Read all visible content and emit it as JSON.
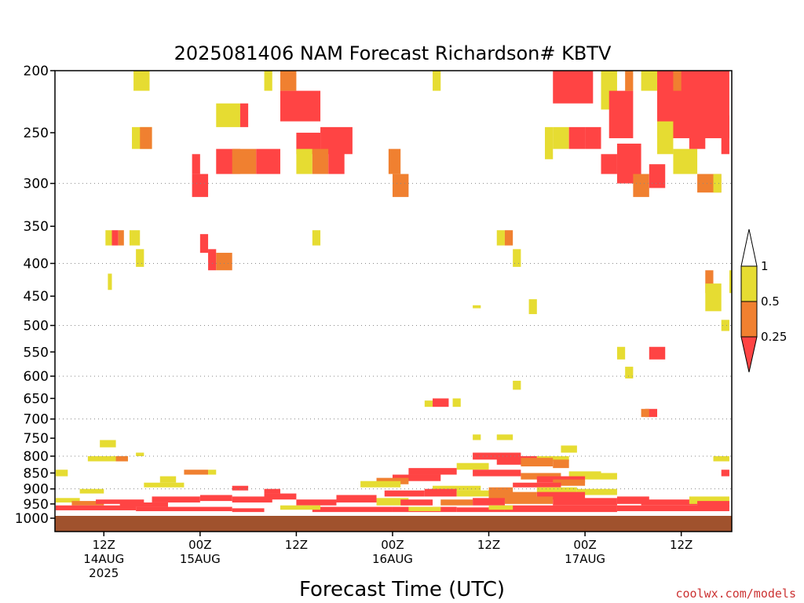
{
  "chart_data": {
    "type": "heatmap",
    "title": "2025081406 NAM Forecast Richardson# KBTV",
    "xlabel": "Forecast Time (UTC)",
    "ylabel": "",
    "credit": "coolwx.com/models",
    "x_unit": "forecast hour from 2025-08-14 06Z",
    "xlim": [
      0,
      84
    ],
    "y_scale": "log-pressure (hPa), inverted",
    "ylim": [
      1000,
      200
    ],
    "y_ticks": [
      200,
      250,
      300,
      350,
      400,
      450,
      500,
      550,
      600,
      650,
      700,
      750,
      800,
      850,
      900,
      950,
      1000
    ],
    "y_gridlines": [
      300,
      400,
      500,
      600,
      700,
      800,
      900
    ],
    "x_ticks": [
      {
        "x": 6,
        "lines": [
          "12Z",
          "14AUG",
          "2025"
        ]
      },
      {
        "x": 18,
        "lines": [
          "00Z",
          "15AUG"
        ]
      },
      {
        "x": 30,
        "lines": [
          "12Z"
        ]
      },
      {
        "x": 42,
        "lines": [
          "00Z",
          "16AUG"
        ]
      },
      {
        "x": 54,
        "lines": [
          "12Z"
        ]
      },
      {
        "x": 66,
        "lines": [
          "00Z",
          "17AUG"
        ]
      },
      {
        "x": 78,
        "lines": [
          "12Z"
        ]
      }
    ],
    "colorbar": {
      "labels": [
        "1",
        "0.5",
        "0.25"
      ],
      "bins": [
        {
          "range": "< 0.25",
          "color": "#ff4444"
        },
        {
          "range": "0.25 - 0.5",
          "color": "#f08030"
        },
        {
          "range": "0.5 - 1",
          "color": "#e6dc32"
        },
        {
          "range": "> 1",
          "color": "#ffffff"
        }
      ]
    },
    "ground_color": "#a0522d",
    "category_colors": {
      "r": "#ff4444",
      "o": "#f08030",
      "y": "#e6dc32"
    },
    "cells_note": "each cell: [forecast hour start, forecast hour end, pressure top hPa, pressure bottom hPa, category]",
    "cells": [
      [
        9.7,
        11.7,
        200,
        215,
        "y"
      ],
      [
        26,
        27,
        200,
        215,
        "y"
      ],
      [
        28,
        30,
        200,
        215,
        "o"
      ],
      [
        28,
        33,
        215,
        240,
        "r"
      ],
      [
        47,
        48,
        200,
        215,
        "y"
      ],
      [
        62,
        67,
        200,
        225,
        "r"
      ],
      [
        68,
        70,
        200,
        230,
        "y"
      ],
      [
        69,
        72,
        215,
        255,
        "r"
      ],
      [
        71,
        72,
        200,
        215,
        "o"
      ],
      [
        73,
        75,
        200,
        215,
        "y"
      ],
      [
        75,
        84,
        200,
        255,
        "r"
      ],
      [
        77,
        78,
        200,
        215,
        "o"
      ],
      [
        20,
        23,
        225,
        245,
        "y"
      ],
      [
        23,
        24,
        225,
        245,
        "r"
      ],
      [
        30,
        33,
        250,
        270,
        "r"
      ],
      [
        33,
        37,
        245,
        270,
        "r"
      ],
      [
        9.5,
        12,
        245,
        265,
        "y"
      ],
      [
        10.5,
        12,
        245,
        265,
        "o"
      ],
      [
        17,
        18,
        270,
        290,
        "r"
      ],
      [
        17,
        19,
        290,
        315,
        "r"
      ],
      [
        20,
        23,
        265,
        290,
        "r"
      ],
      [
        22,
        25,
        265,
        290,
        "o"
      ],
      [
        25,
        28,
        265,
        290,
        "r"
      ],
      [
        30,
        32,
        265,
        290,
        "y"
      ],
      [
        32,
        34,
        265,
        290,
        "o"
      ],
      [
        34,
        36,
        265,
        290,
        "r"
      ],
      [
        41.5,
        43,
        265,
        290,
        "o"
      ],
      [
        42,
        44,
        290,
        315,
        "o"
      ],
      [
        61,
        62,
        245,
        275,
        "y"
      ],
      [
        62,
        64,
        245,
        265,
        "y"
      ],
      [
        64,
        66,
        245,
        265,
        "r"
      ],
      [
        66,
        68,
        245,
        265,
        "r"
      ],
      [
        68,
        70,
        270,
        290,
        "r"
      ],
      [
        70,
        73,
        260,
        300,
        "r"
      ],
      [
        72,
        74,
        290,
        315,
        "o"
      ],
      [
        74,
        76,
        280,
        305,
        "r"
      ],
      [
        75,
        77,
        240,
        270,
        "y"
      ],
      [
        77,
        80,
        265,
        290,
        "y"
      ],
      [
        79,
        81,
        245,
        265,
        "r"
      ],
      [
        80,
        83,
        290,
        310,
        "o"
      ],
      [
        83,
        84,
        235,
        270,
        "r"
      ],
      [
        82,
        83,
        290,
        310,
        "y"
      ],
      [
        6.2,
        7,
        355,
        375,
        "y"
      ],
      [
        7,
        7.8,
        355,
        375,
        "r"
      ],
      [
        7.8,
        8.5,
        355,
        375,
        "o"
      ],
      [
        9.2,
        10.5,
        355,
        375,
        "y"
      ],
      [
        10,
        11,
        380,
        405,
        "y"
      ],
      [
        6.5,
        7,
        415,
        440,
        "y"
      ],
      [
        18,
        19,
        360,
        385,
        "r"
      ],
      [
        19,
        20,
        380,
        410,
        "r"
      ],
      [
        20,
        22,
        385,
        410,
        "o"
      ],
      [
        32,
        33,
        355,
        375,
        "y"
      ],
      [
        55,
        56,
        355,
        375,
        "y"
      ],
      [
        56,
        57,
        355,
        375,
        "o"
      ],
      [
        57,
        58,
        380,
        405,
        "y"
      ],
      [
        81,
        82,
        410,
        445,
        "o"
      ],
      [
        81,
        83,
        430,
        475,
        "y"
      ],
      [
        83,
        84,
        490,
        510,
        "y"
      ],
      [
        84,
        84.7,
        410,
        445,
        "y"
      ],
      [
        52,
        53,
        465,
        470,
        "y"
      ],
      [
        59,
        60,
        455,
        480,
        "y"
      ],
      [
        70,
        71,
        540,
        565,
        "y"
      ],
      [
        74,
        76,
        540,
        565,
        "r"
      ],
      [
        71,
        72,
        580,
        605,
        "y"
      ],
      [
        57,
        58,
        610,
        630,
        "y"
      ],
      [
        46,
        47,
        655,
        670,
        "y"
      ],
      [
        47,
        49,
        650,
        670,
        "r"
      ],
      [
        49.5,
        50.5,
        650,
        670,
        "y"
      ],
      [
        73.5,
        75,
        675,
        695,
        "r"
      ],
      [
        73,
        74,
        675,
        695,
        "o"
      ],
      [
        5.5,
        7.5,
        755,
        775,
        "y"
      ],
      [
        4,
        9,
        800,
        815,
        "y"
      ],
      [
        7.5,
        9,
        800,
        815,
        "o"
      ],
      [
        10,
        11,
        790,
        800,
        "y"
      ],
      [
        0,
        1.5,
        840,
        860,
        "y"
      ],
      [
        16,
        19,
        840,
        855,
        "o"
      ],
      [
        19,
        20,
        840,
        855,
        "y"
      ],
      [
        55,
        57,
        740,
        755,
        "y"
      ],
      [
        52,
        53,
        740,
        755,
        "y"
      ],
      [
        60,
        64,
        800,
        815,
        "y"
      ],
      [
        63,
        65,
        770,
        790,
        "y"
      ],
      [
        52,
        58,
        790,
        810,
        "r"
      ],
      [
        55,
        60,
        800,
        825,
        "r"
      ],
      [
        58,
        62,
        805,
        830,
        "o"
      ],
      [
        62,
        64,
        810,
        835,
        "o"
      ],
      [
        50,
        54,
        820,
        840,
        "y"
      ],
      [
        44,
        50,
        835,
        855,
        "r"
      ],
      [
        52,
        58,
        840,
        860,
        "r"
      ],
      [
        58,
        63,
        850,
        870,
        "o"
      ],
      [
        42,
        48,
        855,
        875,
        "r"
      ],
      [
        40,
        44,
        865,
        885,
        "o"
      ],
      [
        38,
        43,
        875,
        895,
        "y"
      ],
      [
        64,
        68,
        845,
        865,
        "y"
      ],
      [
        66,
        70,
        850,
        870,
        "y"
      ],
      [
        82,
        84,
        800,
        815,
        "y"
      ],
      [
        83,
        84,
        840,
        860,
        "r"
      ],
      [
        60,
        66,
        860,
        880,
        "r"
      ],
      [
        62,
        66,
        870,
        890,
        "o"
      ],
      [
        47,
        53,
        890,
        905,
        "y"
      ],
      [
        54,
        57,
        895,
        915,
        "o"
      ],
      [
        57,
        63,
        880,
        895,
        "r"
      ],
      [
        60,
        65,
        895,
        915,
        "y"
      ],
      [
        65,
        70,
        900,
        920,
        "y"
      ],
      [
        60,
        66,
        910,
        935,
        "r"
      ],
      [
        54,
        60,
        910,
        935,
        "o"
      ],
      [
        41,
        46,
        905,
        925,
        "r"
      ],
      [
        46,
        50,
        900,
        925,
        "r"
      ],
      [
        50,
        54,
        905,
        925,
        "y"
      ],
      [
        40,
        44,
        930,
        955,
        "y"
      ],
      [
        43,
        47,
        935,
        955,
        "r"
      ],
      [
        48,
        52,
        935,
        955,
        "o"
      ],
      [
        52,
        56,
        930,
        955,
        "r"
      ],
      [
        56,
        62,
        925,
        950,
        "o"
      ],
      [
        62,
        70,
        930,
        955,
        "r"
      ],
      [
        70,
        74,
        925,
        950,
        "r"
      ],
      [
        73,
        80,
        935,
        955,
        "r"
      ],
      [
        79,
        84,
        925,
        950,
        "y"
      ],
      [
        80,
        84,
        940,
        960,
        "r"
      ],
      [
        0,
        3,
        930,
        945,
        "y"
      ],
      [
        2,
        6,
        940,
        955,
        "o"
      ],
      [
        5,
        11,
        935,
        950,
        "r"
      ],
      [
        8,
        14,
        945,
        960,
        "r"
      ],
      [
        12,
        18,
        925,
        945,
        "r"
      ],
      [
        18,
        22,
        920,
        940,
        "r"
      ],
      [
        22,
        27,
        925,
        945,
        "r"
      ],
      [
        26,
        30,
        915,
        935,
        "r"
      ],
      [
        30,
        35,
        935,
        955,
        "r"
      ],
      [
        35,
        40,
        920,
        945,
        "r"
      ],
      [
        3,
        6,
        900,
        915,
        "y"
      ],
      [
        11,
        16,
        880,
        895,
        "y"
      ],
      [
        13,
        15,
        860,
        880,
        "y"
      ],
      [
        22,
        24,
        890,
        905,
        "r"
      ],
      [
        26,
        28,
        900,
        915,
        "r"
      ],
      [
        0,
        10,
        955,
        972,
        "r"
      ],
      [
        10,
        22,
        960,
        975,
        "r"
      ],
      [
        22,
        26,
        965,
        978,
        "r"
      ],
      [
        32,
        42,
        960,
        978,
        "r"
      ],
      [
        42,
        50,
        960,
        978,
        "r"
      ],
      [
        50,
        56,
        962,
        978,
        "r"
      ],
      [
        56,
        70,
        955,
        978,
        "r"
      ],
      [
        70,
        84,
        955,
        975,
        "r"
      ],
      [
        28,
        33,
        955,
        970,
        "y"
      ],
      [
        44,
        48,
        960,
        975,
        "y"
      ],
      [
        54,
        57,
        955,
        970,
        "y"
      ]
    ]
  }
}
